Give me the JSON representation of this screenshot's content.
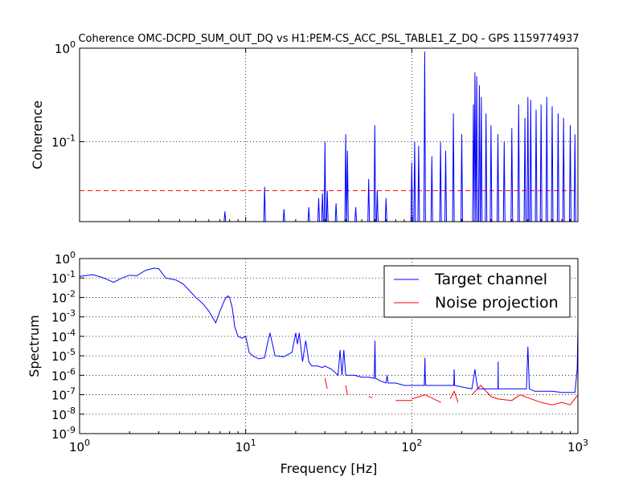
{
  "title": "Coherence OMC-DCPD_SUM_OUT_DQ vs H1:PEM-CS_ACC_PSL_TABLE1_Z_DQ - GPS 1159774937",
  "chart_data": [
    {
      "type": "line",
      "panel": "top",
      "ylabel": "Coherence",
      "xscale": "log",
      "yscale": "log",
      "xlim": [
        1,
        1000
      ],
      "ylim": [
        0.014,
        1
      ],
      "yticks": [
        {
          "value": 1,
          "label": "10^0"
        },
        {
          "value": 0.1,
          "label": "10^-1"
        }
      ],
      "grid": true,
      "threshold": {
        "value": 0.03,
        "color": "#ff0000",
        "style": "dashed"
      },
      "series": [
        {
          "color": "#0000ff",
          "peaks": [
            [
              7.5,
              0.018
            ],
            [
              13,
              0.033
            ],
            [
              17,
              0.019
            ],
            [
              24,
              0.02
            ],
            [
              27.5,
              0.025
            ],
            [
              29,
              0.028
            ],
            [
              30,
              0.1
            ],
            [
              31,
              0.03
            ],
            [
              35,
              0.022
            ],
            [
              40,
              0.12
            ],
            [
              41,
              0.08
            ],
            [
              46,
              0.02
            ],
            [
              55,
              0.04
            ],
            [
              59.9,
              0.15
            ],
            [
              62,
              0.03
            ],
            [
              70,
              0.025
            ],
            [
              100,
              0.06
            ],
            [
              104,
              0.1
            ],
            [
              110,
              0.09
            ],
            [
              119.6,
              0.92
            ],
            [
              132,
              0.07
            ],
            [
              149,
              0.1
            ],
            [
              160,
              0.08
            ],
            [
              178,
              0.2
            ],
            [
              200,
              0.12
            ],
            [
              235,
              0.25
            ],
            [
              240,
              0.55
            ],
            [
              246,
              0.5
            ],
            [
              255,
              0.4
            ],
            [
              262,
              0.3
            ],
            [
              280,
              0.2
            ],
            [
              300,
              0.15
            ],
            [
              330,
              0.12
            ],
            [
              360,
              0.1
            ],
            [
              400,
              0.14
            ],
            [
              440,
              0.25
            ],
            [
              480,
              0.18
            ],
            [
              500,
              0.3
            ],
            [
              520,
              0.28
            ],
            [
              560,
              0.22
            ],
            [
              600,
              0.25
            ],
            [
              650,
              0.3
            ],
            [
              700,
              0.24
            ],
            [
              760,
              0.2
            ],
            [
              820,
              0.18
            ],
            [
              900,
              0.15
            ],
            [
              960,
              0.12
            ]
          ]
        }
      ]
    },
    {
      "type": "line",
      "panel": "bottom",
      "xlabel": "Frequency [Hz]",
      "ylabel": "Spectrum",
      "xscale": "log",
      "yscale": "log",
      "xlim": [
        1,
        1000
      ],
      "ylim": [
        1e-09,
        1
      ],
      "xticks": [
        {
          "value": 1,
          "label": "10^0"
        },
        {
          "value": 10,
          "label": "10^1"
        },
        {
          "value": 100,
          "label": "10^2"
        },
        {
          "value": 1000,
          "label": "10^3"
        }
      ],
      "yticks": [
        {
          "value": 1,
          "label": "10^0"
        },
        {
          "value": 0.1,
          "label": "10^-1"
        },
        {
          "value": 0.01,
          "label": "10^-2"
        },
        {
          "value": 0.001,
          "label": "10^-3"
        },
        {
          "value": 0.0001,
          "label": "10^-4"
        },
        {
          "value": 1e-05,
          "label": "10^-5"
        },
        {
          "value": 1e-06,
          "label": "10^-6"
        },
        {
          "value": 1e-07,
          "label": "10^-7"
        },
        {
          "value": 1e-08,
          "label": "10^-8"
        },
        {
          "value": 1e-09,
          "label": "10^-9"
        }
      ],
      "grid": true,
      "legend": {
        "position": "top-right"
      },
      "series": [
        {
          "name": "Target channel",
          "color": "#0000ff",
          "x": [
            1,
            1.2,
            1.4,
            1.6,
            1.8,
            2.0,
            2.2,
            2.5,
            2.8,
            3.0,
            3.3,
            3.8,
            4.2,
            5.0,
            5.5,
            6.0,
            6.6,
            7.0,
            7.5,
            7.8,
            8.0,
            8.3,
            8.6,
            9.0,
            9.5,
            10,
            10.5,
            11,
            12,
            13,
            13.5,
            14,
            14.5,
            15,
            17,
            19,
            20,
            20.5,
            21,
            22,
            23,
            24,
            25,
            27,
            29,
            30,
            33,
            36,
            37,
            38,
            39,
            40,
            45,
            50,
            55,
            59.5,
            60,
            60.5,
            65,
            70,
            71,
            72,
            80,
            90,
            100,
            110,
            119,
            120,
            121,
            130,
            150,
            170,
            179,
            180,
            181,
            200,
            230,
            240,
            245,
            250,
            270,
            300,
            330,
            331,
            332,
            350,
            400,
            450,
            490,
            500,
            510,
            550,
            600,
            700,
            800,
            900,
            960,
            990,
            1000
          ],
          "y": [
            0.12,
            0.15,
            0.1,
            0.06,
            0.1,
            0.14,
            0.13,
            0.25,
            0.32,
            0.3,
            0.1,
            0.08,
            0.05,
            0.01,
            0.005,
            0.002,
            0.0005,
            0.002,
            0.008,
            0.012,
            0.01,
            0.003,
            0.0003,
            0.0001,
            8e-05,
            0.0001,
            1.5e-05,
            1e-05,
            7e-06,
            8e-06,
            4e-05,
            0.00015,
            4e-05,
            1e-05,
            9e-06,
            1.5e-05,
            0.00015,
            4e-05,
            0.00015,
            5e-06,
            6e-05,
            5e-06,
            3e-06,
            3e-06,
            2.5e-06,
            3e-06,
            2e-06,
            1e-06,
            2e-05,
            1e-06,
            2e-05,
            1e-06,
            1e-06,
            8e-07,
            8e-07,
            7e-07,
            6e-05,
            7e-07,
            5e-07,
            4e-07,
            1e-06,
            4e-07,
            4e-07,
            3e-07,
            3e-07,
            3e-07,
            3e-07,
            8e-06,
            3e-07,
            3e-07,
            3e-07,
            3e-07,
            3e-07,
            2e-06,
            3e-07,
            2.5e-07,
            2e-07,
            2e-06,
            5e-07,
            2e-07,
            2e-07,
            2e-07,
            2e-07,
            5e-06,
            2e-07,
            2e-07,
            2e-07,
            2e-07,
            2e-07,
            3e-05,
            2e-07,
            1.5e-07,
            1.5e-07,
            1.5e-07,
            1.3e-07,
            1.3e-07,
            1.3e-07,
            2e-06,
            0.0003
          ]
        },
        {
          "name": "Noise projection",
          "color": "#ff0000",
          "segments": [
            {
              "x": [
                30,
                31
              ],
              "y": [
                7e-07,
                2e-07
              ]
            },
            {
              "x": [
                40,
                41
              ],
              "y": [
                3e-07,
                1e-07
              ]
            },
            {
              "x": [
                55,
                58
              ],
              "y": [
                8e-08,
                7e-08
              ]
            },
            {
              "x": [
                80,
                100
              ],
              "y": [
                5e-08,
                5e-08
              ]
            },
            {
              "x": [
                100,
                120,
                150
              ],
              "y": [
                6e-08,
                1e-07,
                4e-08
              ]
            },
            {
              "x": [
                170,
                180,
                190
              ],
              "y": [
                6e-08,
                1.5e-07,
                4e-08
              ]
            },
            {
              "x": [
                230,
                260,
                300,
                330
              ],
              "y": [
                1e-07,
                3e-07,
                8e-08,
                6e-08
              ]
            },
            {
              "x": [
                330,
                400,
                450,
                500,
                600,
                700,
                800,
                900,
                1000
              ],
              "y": [
                6e-08,
                5e-08,
                1e-07,
                7e-08,
                4e-08,
                3e-08,
                4e-08,
                3e-08,
                1e-07
              ]
            }
          ]
        }
      ]
    }
  ]
}
